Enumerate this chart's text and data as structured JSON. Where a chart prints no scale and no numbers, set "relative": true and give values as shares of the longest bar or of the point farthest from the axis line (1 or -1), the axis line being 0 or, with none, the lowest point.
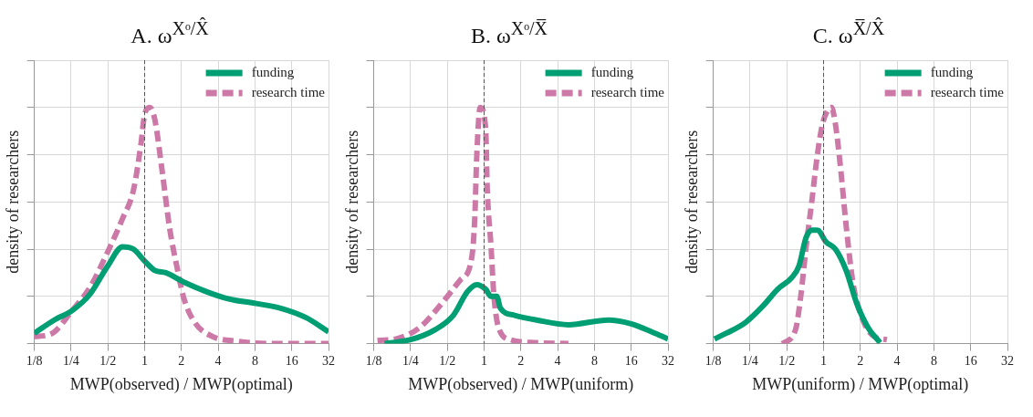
{
  "chart_data": [
    {
      "type": "line",
      "title": "A. ω$^{Xᵒ/X̂}$",
      "xlabel": "MWP(observed) / MWP(optimal)",
      "ylabel": "density of researchers",
      "relative": true,
      "log": "x",
      "grid": true,
      "legend": "top right",
      "xlim": [
        0.125,
        32
      ],
      "xticks": [
        {
          "value": 0.125,
          "label": "1/8"
        },
        {
          "value": 0.25,
          "label": "1/4"
        },
        {
          "value": 0.5,
          "label": "1/2"
        },
        1,
        2,
        4,
        8,
        16,
        32
      ],
      "ref_lines": [
        {
          "axis": "x",
          "value": 1,
          "color": "#555555",
          "line_style": "dashed"
        }
      ],
      "series": [
        {
          "name": "funding",
          "color": "#009e73",
          "line_style": "solid",
          "x": [
            0.125,
            0.182,
            0.255,
            0.358,
            0.5,
            0.66,
            0.81,
            1.0,
            1.21,
            1.49,
            2.1,
            3.2,
            4.8,
            8.2,
            13,
            21,
            32
          ],
          "values": [
            0.044,
            0.1,
            0.14,
            0.21,
            0.33,
            0.41,
            0.4,
            0.35,
            0.31,
            0.3,
            0.26,
            0.22,
            0.19,
            0.17,
            0.15,
            0.11,
            0.05
          ]
        },
        {
          "name": "research time",
          "color": "#cc79a7",
          "line_style": "dashed",
          "x": [
            0.125,
            0.17,
            0.255,
            0.358,
            0.5,
            0.66,
            0.81,
            0.93,
            1.0,
            1.1,
            1.21,
            1.4,
            1.6,
            1.83,
            2.1,
            2.57,
            3.6,
            5.8,
            11.5,
            32
          ],
          "values": [
            0.03,
            0.04,
            0.14,
            0.24,
            0.39,
            0.53,
            0.65,
            0.84,
            0.97,
            1.0,
            0.95,
            0.72,
            0.49,
            0.33,
            0.19,
            0.09,
            0.03,
            0.01,
            0,
            0
          ]
        }
      ]
    },
    {
      "type": "line",
      "title": "B. ω$^{Xᵒ/X̅}$",
      "xlabel": "MWP(observed) / MWP(uniform)",
      "ylabel": "density of researchers",
      "relative": true,
      "log": "x",
      "grid": true,
      "legend": "top right",
      "xlim": [
        0.125,
        32
      ],
      "xticks": [
        {
          "value": 0.125,
          "label": "1/8"
        },
        {
          "value": 0.25,
          "label": "1/4"
        },
        {
          "value": 0.5,
          "label": "1/2"
        },
        1,
        2,
        4,
        8,
        16,
        32
      ],
      "ref_lines": [
        {
          "axis": "x",
          "value": 1,
          "color": "#555555",
          "line_style": "dashed"
        }
      ],
      "series": [
        {
          "name": "funding",
          "color": "#009e73",
          "line_style": "solid",
          "x": [
            0.153,
            0.247,
            0.4,
            0.56,
            0.73,
            0.87,
            1.03,
            1.14,
            1.27,
            1.36,
            1.78,
            2.7,
            4.9,
            10.4,
            15.7,
            23.6,
            32
          ],
          "values": [
            0,
            0.016,
            0.06,
            0.12,
            0.22,
            0.25,
            0.23,
            0.2,
            0.2,
            0.15,
            0.12,
            0.1,
            0.08,
            0.1,
            0.085,
            0.05,
            0.02
          ]
        },
        {
          "name": "research time",
          "color": "#cc79a7",
          "line_style": "dashed",
          "x": [
            0.134,
            0.2,
            0.3,
            0.45,
            0.64,
            0.79,
            0.84,
            0.87,
            0.93,
            1.03,
            1.06,
            1.14,
            1.2,
            1.31,
            1.66,
            2.7,
            4.9
          ],
          "values": [
            0.013,
            0.023,
            0.07,
            0.17,
            0.27,
            0.36,
            0.54,
            0.79,
            1.0,
            0.91,
            0.66,
            0.41,
            0.21,
            0.07,
            0.016,
            0.004,
            0
          ]
        }
      ]
    },
    {
      "type": "line",
      "title": "C. ω$^{X̅/X̂}$",
      "xlabel": "MWP(uniform) / MWP(optimal)",
      "ylabel": "density of researchers",
      "relative": true,
      "log": "x",
      "grid": true,
      "legend": "top right",
      "xlim": [
        0.125,
        32
      ],
      "xticks": [
        {
          "value": 0.125,
          "label": "1/8"
        },
        {
          "value": 0.25,
          "label": "1/4"
        },
        {
          "value": 0.5,
          "label": "1/2"
        },
        1,
        2,
        4,
        8,
        16,
        32
      ],
      "ref_lines": [
        {
          "axis": "x",
          "value": 1,
          "color": "#555555",
          "line_style": "dashed"
        }
      ],
      "series": [
        {
          "name": "funding",
          "color": "#009e73",
          "line_style": "solid",
          "x": [
            0.128,
            0.16,
            0.23,
            0.32,
            0.42,
            0.55,
            0.63,
            0.72,
            0.8,
            0.89,
            1.05,
            1.25,
            1.53,
            1.87,
            2.3,
            2.9
          ],
          "values": [
            0.02,
            0.044,
            0.09,
            0.16,
            0.23,
            0.28,
            0.33,
            0.45,
            0.48,
            0.48,
            0.43,
            0.4,
            0.31,
            0.17,
            0.07,
            0.004
          ]
        },
        {
          "name": "research time",
          "color": "#cc79a7",
          "line_style": "dashed",
          "x": [
            0.46,
            0.59,
            0.65,
            0.72,
            0.8,
            0.89,
            0.98,
            1.09,
            1.16,
            1.25,
            1.38,
            1.53,
            1.75,
            2.14,
            2.6,
            3.3
          ],
          "values": [
            0,
            0.06,
            0.2,
            0.41,
            0.6,
            0.8,
            0.93,
            0.99,
            1.0,
            0.93,
            0.74,
            0.5,
            0.25,
            0.09,
            0.03,
            0.017
          ]
        }
      ]
    }
  ]
}
